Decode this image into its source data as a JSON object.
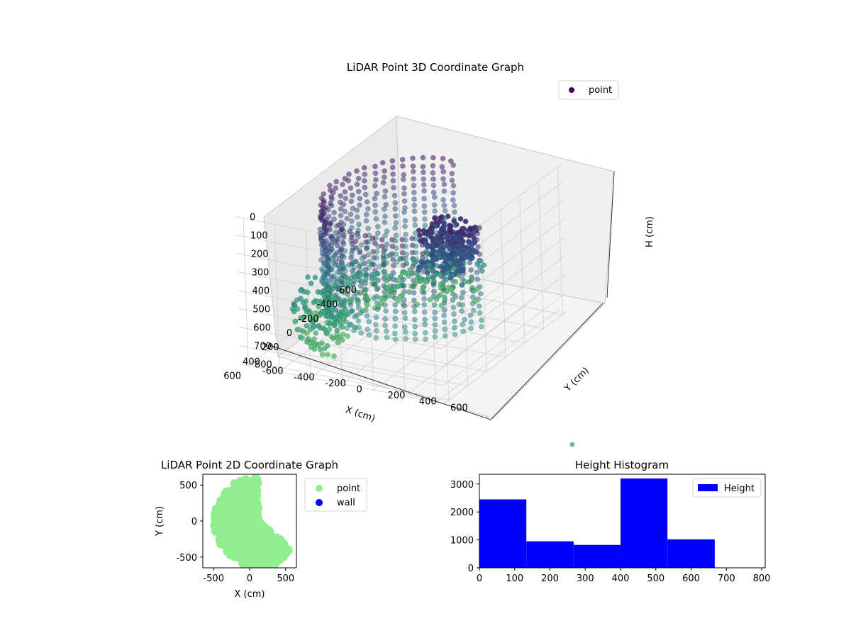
{
  "chart_data": [
    {
      "type": "scatter",
      "projection": "3d",
      "title": "LiDAR Point 3D Coordinate Graph",
      "xlabel": "X (cm)",
      "ylabel": "Y (cm)",
      "zlabel": "H (cm)",
      "xlim": [
        -650,
        650
      ],
      "ylim": [
        -650,
        650
      ],
      "zlim": [
        800,
        0
      ],
      "xticks": [
        -600,
        -400,
        -200,
        0,
        200,
        400,
        600
      ],
      "yticks": [
        -600,
        -400,
        -200,
        0,
        200,
        400,
        600
      ],
      "zticks": [
        0,
        100,
        200,
        300,
        400,
        500,
        600,
        700,
        800
      ],
      "colormap": "viridis",
      "legend": {
        "placement": "upper-right",
        "entries": [
          {
            "name": "point",
            "color": "#440154"
          }
        ]
      },
      "grid": true,
      "series": [
        {
          "name": "point",
          "description": "cylindrical wall of points, radius ~650 cm, heights 0-800 cm"
        }
      ]
    },
    {
      "type": "scatter",
      "title": "LiDAR Point 2D Coordinate Graph",
      "xlabel": "X (cm)",
      "ylabel": "Y (cm)",
      "xlim": [
        -650,
        650
      ],
      "ylim": [
        -650,
        650
      ],
      "xticks": [
        -500,
        0,
        500
      ],
      "yticks": [
        -500,
        0,
        500
      ],
      "legend": {
        "placement": "outside-right",
        "entries": [
          {
            "name": "point",
            "color": "#90ee90"
          },
          {
            "name": "wall",
            "color": "#0000ff"
          }
        ]
      },
      "grid": false
    },
    {
      "type": "bar",
      "title": "Height Histogram",
      "xlabel": "",
      "ylabel": "",
      "xlim": [
        0,
        810
      ],
      "ylim": [
        0,
        3350
      ],
      "xticks": [
        0,
        100,
        200,
        300,
        400,
        500,
        600,
        700,
        800
      ],
      "yticks": [
        0,
        1000,
        2000,
        3000
      ],
      "bins": [
        {
          "x0": 0,
          "x1": 133,
          "value": 2450
        },
        {
          "x0": 133,
          "x1": 267,
          "value": 950
        },
        {
          "x0": 267,
          "x1": 400,
          "value": 820
        },
        {
          "x0": 400,
          "x1": 533,
          "value": 3200
        },
        {
          "x0": 533,
          "x1": 667,
          "value": 1020
        },
        {
          "x0": 667,
          "x1": 800,
          "value": 0
        }
      ],
      "bar_color": "#0000ff",
      "legend": {
        "placement": "upper-right",
        "entries": [
          {
            "name": "Height",
            "color": "#0000ff"
          }
        ]
      },
      "grid": false
    }
  ]
}
